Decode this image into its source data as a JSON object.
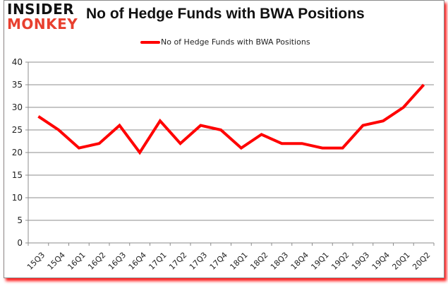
{
  "logo": {
    "line1": "INSIDER",
    "line2": "MONKEY"
  },
  "title": "No of Hedge Funds with BWA Positions",
  "legend": {
    "label": "No of Hedge Funds with BWA Positions",
    "color": "#ff0000"
  },
  "chart_data": {
    "type": "line",
    "title": "No of Hedge Funds with BWA Positions",
    "xlabel": "",
    "ylabel": "",
    "categories": [
      "15Q3",
      "15Q4",
      "16Q1",
      "16Q2",
      "16Q3",
      "16Q4",
      "17Q1",
      "17Q2",
      "17Q3",
      "17Q4",
      "18Q1",
      "18Q2",
      "18Q3",
      "18Q4",
      "19Q1",
      "19Q2",
      "19Q3",
      "19Q4",
      "20Q1",
      "20Q2"
    ],
    "series": [
      {
        "name": "No of Hedge Funds with BWA Positions",
        "color": "#ff0000",
        "values": [
          28,
          25,
          21,
          22,
          26,
          20,
          27,
          22,
          26,
          25,
          21,
          24,
          22,
          22,
          21,
          21,
          26,
          27,
          30,
          35
        ]
      }
    ],
    "ylim": [
      0,
      40
    ],
    "yticks": [
      0,
      5,
      10,
      15,
      20,
      25,
      30,
      35,
      40
    ],
    "grid": true,
    "legend_position": "top"
  }
}
